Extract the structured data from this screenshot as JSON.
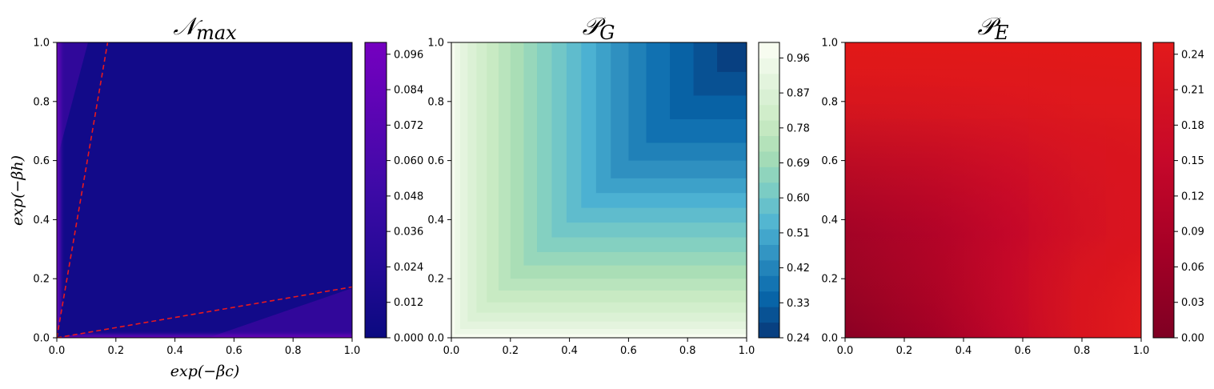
{
  "chart_data": [
    {
      "type": "heatmap",
      "title": "𝒩max",
      "title_main": "𝒩",
      "title_sub": "max",
      "xlabel": "exp(−βc)",
      "ylabel": "exp(−βh)",
      "xlim": [
        0,
        1
      ],
      "ylim": [
        0,
        1
      ],
      "xticks": [
        "0.0",
        "0.2",
        "0.4",
        "0.6",
        "0.8",
        "1.0"
      ],
      "yticks": [
        "0.0",
        "0.2",
        "0.4",
        "0.6",
        "0.8",
        "1.0"
      ],
      "colormap": [
        "#0b0a80",
        "#150a8c",
        "#3a0aa3",
        "#5e05b5",
        "#7a00c0"
      ],
      "colorbar_range": [
        0,
        0.1
      ],
      "colorbar_ticks": [
        "0.000",
        "0.012",
        "0.024",
        "0.036",
        "0.048",
        "0.060",
        "0.072",
        "0.084",
        "0.096"
      ],
      "boundary_lines": [
        {
          "x": [
            0,
            0.172
          ],
          "y": [
            0,
            1.0
          ],
          "color": "#e8191e",
          "style": "dashed"
        },
        {
          "x": [
            0,
            1.0
          ],
          "y": [
            0,
            0.172
          ],
          "color": "#e8191e",
          "style": "dashed"
        }
      ],
      "grid": false
    },
    {
      "type": "heatmap",
      "title": "𝒫G",
      "title_main": "𝒫",
      "title_sub": "G",
      "xlabel": "",
      "ylabel": "",
      "xlim": [
        0,
        1
      ],
      "ylim": [
        0,
        1
      ],
      "xticks": [
        "0.0",
        "0.2",
        "0.4",
        "0.6",
        "0.8",
        "1.0"
      ],
      "yticks": [
        "0.0",
        "0.2",
        "0.4",
        "0.6",
        "0.8",
        "1.0"
      ],
      "colormap": [
        "#f7fcf0",
        "#e0f3db",
        "#ccebc5",
        "#a8ddb5",
        "#7bccc4",
        "#4eb3d3",
        "#2b8cbe",
        "#0868ac",
        "#084081"
      ],
      "colorbar_range": [
        0.24,
        1.0
      ],
      "colorbar_ticks": [
        "0.24",
        "0.33",
        "0.42",
        "0.51",
        "0.60",
        "0.69",
        "0.78",
        "0.87",
        "0.96"
      ],
      "grid": false
    },
    {
      "type": "heatmap",
      "title": "𝒫E",
      "title_main": "𝒫",
      "title_sub": "E",
      "xlabel": "",
      "ylabel": "",
      "xlim": [
        0,
        1
      ],
      "ylim": [
        0,
        1
      ],
      "xticks": [
        "0.0",
        "0.2",
        "0.4",
        "0.6",
        "0.8",
        "1.0"
      ],
      "yticks": [
        "0.0",
        "0.2",
        "0.4",
        "0.6",
        "0.8",
        "1.0"
      ],
      "colormap": [
        "#7f0023",
        "#a50026",
        "#c6082a",
        "#dc1820",
        "#e31a1c"
      ],
      "colorbar_range": [
        0,
        0.25
      ],
      "colorbar_ticks": [
        "0.00",
        "0.03",
        "0.06",
        "0.09",
        "0.12",
        "0.15",
        "0.18",
        "0.21",
        "0.24"
      ],
      "grid": false
    }
  ]
}
